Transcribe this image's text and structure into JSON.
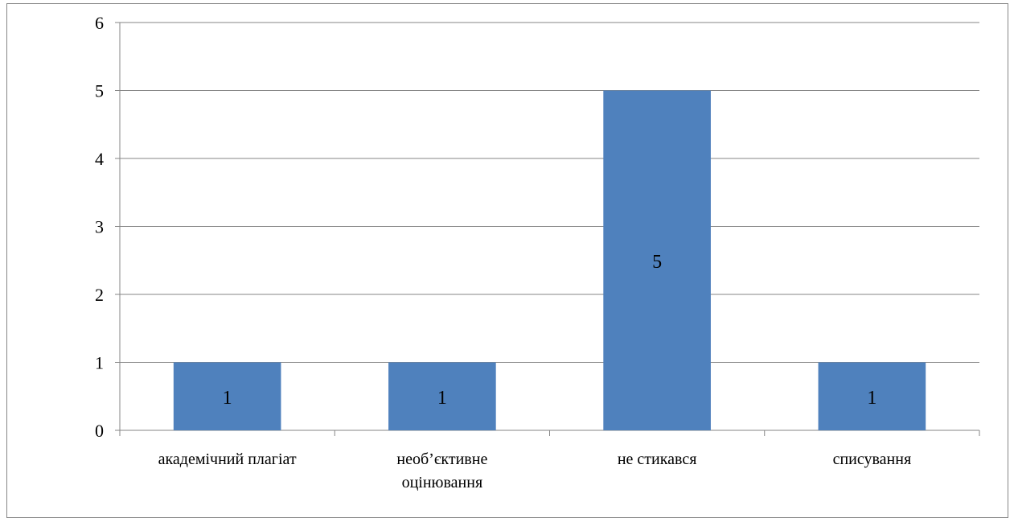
{
  "chart_data": {
    "type": "bar",
    "title": "",
    "xlabel": "",
    "ylabel": "",
    "categories": [
      [
        "академічний плагіат"
      ],
      [
        "необ’єктивне",
        "оцінювання"
      ],
      [
        "не стикався"
      ],
      [
        "списування"
      ]
    ],
    "values": [
      1,
      1,
      5,
      1
    ],
    "data_labels": [
      "1",
      "1",
      "5",
      "1"
    ],
    "ylim": [
      0,
      6
    ],
    "yticks": [
      "0",
      "1",
      "2",
      "3",
      "4",
      "5",
      "6"
    ],
    "grid": true,
    "legend": "none",
    "colors": {
      "bar": "#4F81BD",
      "grid": "#868686",
      "axis": "#868686"
    }
  }
}
